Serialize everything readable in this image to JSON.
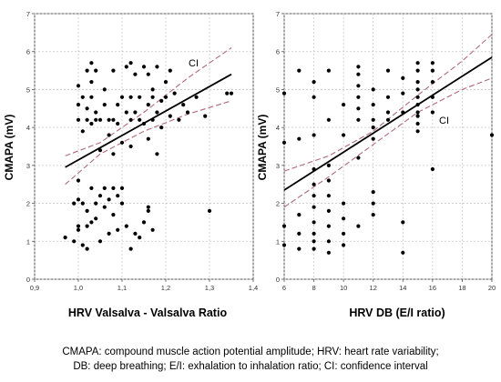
{
  "chart_data": [
    {
      "type": "scatter",
      "xlabel": "HRV Valsalva - Valsalva Ratio",
      "ylabel": "CMAPA (mV)",
      "xlim": [
        0.9,
        1.4
      ],
      "ylim": [
        0,
        7
      ],
      "xticks": [
        "0,9",
        "1,0",
        "1,1",
        "1,2",
        "1,3",
        "1,4"
      ],
      "yticks": [
        "0",
        "1",
        "2",
        "3",
        "4",
        "5",
        "6",
        "7"
      ],
      "xtick_values": [
        0.9,
        1.0,
        1.1,
        1.2,
        1.3,
        1.4
      ],
      "ytick_values": [
        0,
        1,
        2,
        3,
        4,
        5,
        6,
        7
      ],
      "grid": true,
      "annotation": "CI",
      "regression_line": [
        [
          0.97,
          2.95
        ],
        [
          1.35,
          5.4
        ]
      ],
      "ci_upper": [
        [
          0.97,
          3.25
        ],
        [
          1.05,
          3.6
        ],
        [
          1.15,
          4.4
        ],
        [
          1.25,
          5.3
        ],
        [
          1.35,
          6.1
        ]
      ],
      "ci_lower": [
        [
          0.97,
          2.5
        ],
        [
          1.05,
          3.3
        ],
        [
          1.15,
          3.9
        ],
        [
          1.25,
          4.35
        ],
        [
          1.35,
          4.7
        ]
      ],
      "points": [
        [
          0.97,
          1.1
        ],
        [
          0.99,
          2.0
        ],
        [
          0.99,
          1.0
        ],
        [
          1.0,
          1.4
        ],
        [
          1.0,
          2.6
        ],
        [
          1.0,
          2.1
        ],
        [
          1.0,
          1.3
        ],
        [
          1.01,
          2.0
        ],
        [
          1.01,
          0.9
        ],
        [
          1.02,
          1.8
        ],
        [
          1.02,
          1.4
        ],
        [
          1.03,
          2.4
        ],
        [
          1.03,
          1.5
        ],
        [
          1.04,
          2.0
        ],
        [
          1.04,
          1.6
        ],
        [
          1.05,
          2.2
        ],
        [
          1.05,
          1.0
        ],
        [
          1.06,
          2.4
        ],
        [
          1.06,
          1.9
        ],
        [
          1.07,
          2.1
        ],
        [
          1.07,
          1.2
        ],
        [
          1.08,
          2.4
        ],
        [
          1.08,
          1.7
        ],
        [
          1.09,
          2.2
        ],
        [
          1.09,
          1.3
        ],
        [
          1.1,
          2.0
        ],
        [
          1.1,
          2.4
        ],
        [
          1.11,
          1.4
        ],
        [
          1.12,
          0.8
        ],
        [
          1.13,
          1.2
        ],
        [
          1.14,
          1.1
        ],
        [
          1.15,
          1.5
        ],
        [
          1.16,
          1.9
        ],
        [
          1.16,
          1.8
        ],
        [
          1.17,
          1.3
        ],
        [
          1.02,
          0.8
        ],
        [
          1.0,
          4.2
        ],
        [
          1.0,
          4.6
        ],
        [
          1.0,
          5.1
        ],
        [
          1.01,
          3.9
        ],
        [
          1.01,
          4.8
        ],
        [
          1.02,
          4.2
        ],
        [
          1.02,
          5.5
        ],
        [
          1.02,
          4.5
        ],
        [
          1.03,
          4.1
        ],
        [
          1.03,
          5.7
        ],
        [
          1.03,
          4.8
        ],
        [
          1.04,
          4.2
        ],
        [
          1.04,
          5.5
        ],
        [
          1.04,
          4.4
        ],
        [
          1.05,
          3.4
        ],
        [
          1.05,
          4.2
        ],
        [
          1.06,
          4.6
        ],
        [
          1.06,
          5.0
        ],
        [
          1.07,
          4.2
        ],
        [
          1.07,
          3.8
        ],
        [
          1.08,
          4.2
        ],
        [
          1.08,
          5.5
        ],
        [
          1.09,
          4.6
        ],
        [
          1.09,
          4.1
        ],
        [
          1.1,
          4.8
        ],
        [
          1.1,
          3.6
        ],
        [
          1.11,
          4.4
        ],
        [
          1.11,
          5.6
        ],
        [
          1.12,
          4.2
        ],
        [
          1.12,
          4.8
        ],
        [
          1.13,
          4.4
        ],
        [
          1.13,
          5.4
        ],
        [
          1.14,
          4.2
        ],
        [
          1.14,
          4.8
        ],
        [
          1.15,
          5.6
        ],
        [
          1.15,
          4.1
        ],
        [
          1.16,
          4.6
        ],
        [
          1.16,
          5.4
        ],
        [
          1.17,
          4.2
        ],
        [
          1.17,
          4.8
        ],
        [
          1.18,
          5.6
        ],
        [
          1.18,
          4.4
        ],
        [
          1.19,
          4.0
        ],
        [
          1.19,
          4.7
        ],
        [
          1.2,
          4.8
        ],
        [
          1.21,
          4.3
        ],
        [
          1.22,
          4.9
        ],
        [
          1.23,
          4.2
        ],
        [
          1.24,
          4.6
        ],
        [
          1.25,
          4.4
        ],
        [
          1.27,
          4.8
        ],
        [
          1.12,
          5.7
        ],
        [
          1.16,
          3.7
        ],
        [
          1.18,
          3.3
        ],
        [
          1.08,
          3.3
        ],
        [
          1.12,
          3.5
        ],
        [
          1.29,
          4.3
        ],
        [
          1.3,
          1.8
        ],
        [
          1.34,
          4.9
        ],
        [
          1.35,
          4.9
        ],
        [
          1.03,
          5.2
        ],
        [
          1.17,
          5.0
        ],
        [
          1.2,
          5.2
        ],
        [
          1.21,
          5.5
        ]
      ]
    },
    {
      "type": "scatter",
      "xlabel": "HRV DB (E/I ratio)",
      "ylabel": "CMAPA (mV)",
      "xlim": [
        6,
        20
      ],
      "ylim": [
        0,
        7
      ],
      "xticks": [
        "6",
        "8",
        "10",
        "12",
        "14",
        "16",
        "18",
        "20"
      ],
      "yticks": [
        "0",
        "1",
        "2",
        "3",
        "4",
        "5",
        "6",
        "7"
      ],
      "xtick_values": [
        6,
        8,
        10,
        12,
        14,
        16,
        18,
        20
      ],
      "ytick_values": [
        0,
        1,
        2,
        3,
        4,
        5,
        6,
        7
      ],
      "grid": true,
      "annotation": "CI",
      "regression_line": [
        [
          6.0,
          2.35
        ],
        [
          20.0,
          5.85
        ]
      ],
      "ci_upper": [
        [
          6.0,
          2.85
        ],
        [
          9.0,
          3.25
        ],
        [
          12.0,
          3.9
        ],
        [
          15.0,
          4.85
        ],
        [
          18.0,
          5.75
        ],
        [
          20.0,
          6.45
        ]
      ],
      "ci_lower": [
        [
          6.0,
          1.9
        ],
        [
          9.0,
          2.7
        ],
        [
          12.0,
          3.55
        ],
        [
          15.0,
          4.4
        ],
        [
          18.0,
          5.0
        ],
        [
          20.0,
          5.3
        ]
      ],
      "points": [
        [
          6,
          0.9
        ],
        [
          6,
          1.4
        ],
        [
          6,
          3.6
        ],
        [
          6,
          4.9
        ],
        [
          7,
          5.5
        ],
        [
          7,
          3.7
        ],
        [
          7,
          1.7
        ],
        [
          7,
          1.2
        ],
        [
          7,
          0.8
        ],
        [
          8,
          5.2
        ],
        [
          8,
          4.8
        ],
        [
          8,
          3.8
        ],
        [
          8,
          2.9
        ],
        [
          8,
          2.5
        ],
        [
          8,
          2.2
        ],
        [
          8,
          1.9
        ],
        [
          8,
          1.5
        ],
        [
          8,
          1.2
        ],
        [
          8,
          1.0
        ],
        [
          8,
          0.8
        ],
        [
          9,
          5.5
        ],
        [
          9,
          4.2
        ],
        [
          9,
          3.0
        ],
        [
          9,
          2.6
        ],
        [
          9,
          2.2
        ],
        [
          9,
          1.8
        ],
        [
          9,
          1.4
        ],
        [
          9,
          1.0
        ],
        [
          9,
          0.7
        ],
        [
          10,
          4.6
        ],
        [
          10,
          3.8
        ],
        [
          10,
          2.0
        ],
        [
          10,
          1.6
        ],
        [
          10,
          1.2
        ],
        [
          10,
          0.9
        ],
        [
          11,
          5.6
        ],
        [
          11,
          5.4
        ],
        [
          11,
          5.1
        ],
        [
          11,
          4.8
        ],
        [
          11,
          4.5
        ],
        [
          11,
          4.2
        ],
        [
          11,
          3.2
        ],
        [
          11,
          1.4
        ],
        [
          12,
          5.0
        ],
        [
          12,
          4.6
        ],
        [
          12,
          4.2
        ],
        [
          12,
          4.0
        ],
        [
          12,
          3.7
        ],
        [
          12,
          2.3
        ],
        [
          12,
          2.0
        ],
        [
          12,
          1.7
        ],
        [
          13,
          5.5
        ],
        [
          13,
          4.8
        ],
        [
          13,
          4.4
        ],
        [
          13,
          4.2
        ],
        [
          14,
          5.3
        ],
        [
          14,
          4.9
        ],
        [
          14,
          4.4
        ],
        [
          14,
          1.5
        ],
        [
          14,
          0.7
        ],
        [
          15,
          5.7
        ],
        [
          15,
          5.5
        ],
        [
          15,
          5.2
        ],
        [
          15,
          5.0
        ],
        [
          15,
          4.8
        ],
        [
          15,
          4.6
        ],
        [
          15,
          4.4
        ],
        [
          15,
          4.3
        ],
        [
          15,
          4.1
        ],
        [
          15,
          3.9
        ],
        [
          16,
          5.7
        ],
        [
          16,
          5.5
        ],
        [
          16,
          5.2
        ],
        [
          16,
          4.8
        ],
        [
          16,
          4.4
        ],
        [
          16,
          2.9
        ],
        [
          20,
          3.8
        ]
      ]
    }
  ],
  "caption": {
    "line1": "CMAPA: compound muscle action potential amplitude; HRV: heart rate variability;",
    "line2": "DB: deep breathing; E/I: exhalation to inhalation ratio; CI: confidence interval"
  }
}
